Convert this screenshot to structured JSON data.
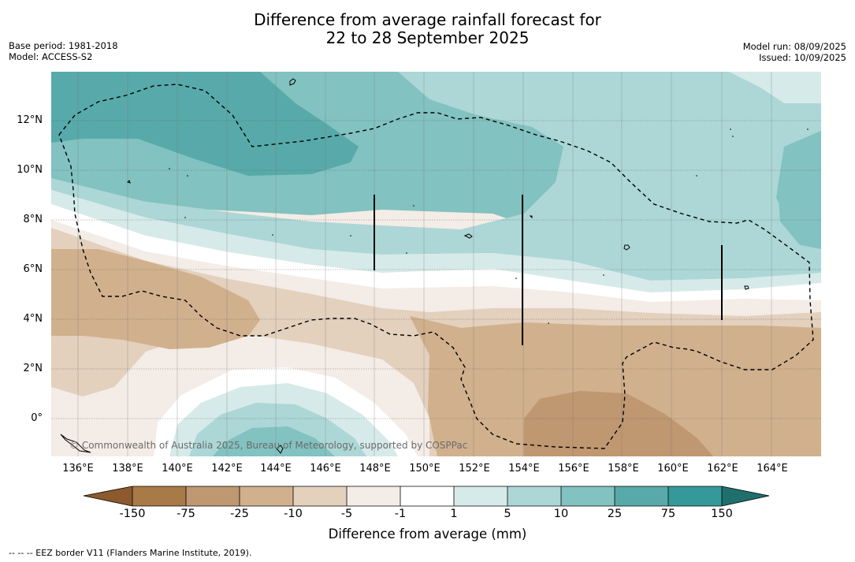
{
  "title": {
    "line1": "Difference from average rainfall forecast for",
    "line2": "22 to 28 September 2025"
  },
  "meta_left": {
    "base_period": "Base period: 1981-2018",
    "model": "Model: ACCESS-S2"
  },
  "meta_right": {
    "model_run": "Model run: 08/09/2025",
    "issued": "Issued: 10/09/2025"
  },
  "map": {
    "y_ticks": [
      "12°N",
      "10°N",
      "8°N",
      "6°N",
      "4°N",
      "2°N",
      "0°"
    ],
    "x_ticks": [
      "136°E",
      "138°E",
      "140°E",
      "142°E",
      "144°E",
      "146°E",
      "148°E",
      "150°E",
      "152°E",
      "154°E",
      "156°E",
      "158°E",
      "160°E",
      "162°E",
      "164°E"
    ],
    "copyright": "© Commonwealth of Australia 2025, Bureau of Meteorology, supported by COSPPac"
  },
  "legend": {
    "ticks": [
      "-150",
      "-75",
      "-25",
      "-10",
      "-5",
      "-1",
      "1",
      "5",
      "10",
      "25",
      "75",
      "150"
    ],
    "colors": [
      "#8c5a2c",
      "#a87a48",
      "#bf9770",
      "#d1b08d",
      "#e3d0bd",
      "#f4ece6",
      "#ffffff",
      "#d6eae9",
      "#acd7d6",
      "#82c2c0",
      "#57aaa9",
      "#35999a",
      "#1f6f6f"
    ],
    "title": "Difference from average (mm)"
  },
  "footnote": "--  --  -- EEZ border V11 (Flanders Marine Institute, 2019)."
}
